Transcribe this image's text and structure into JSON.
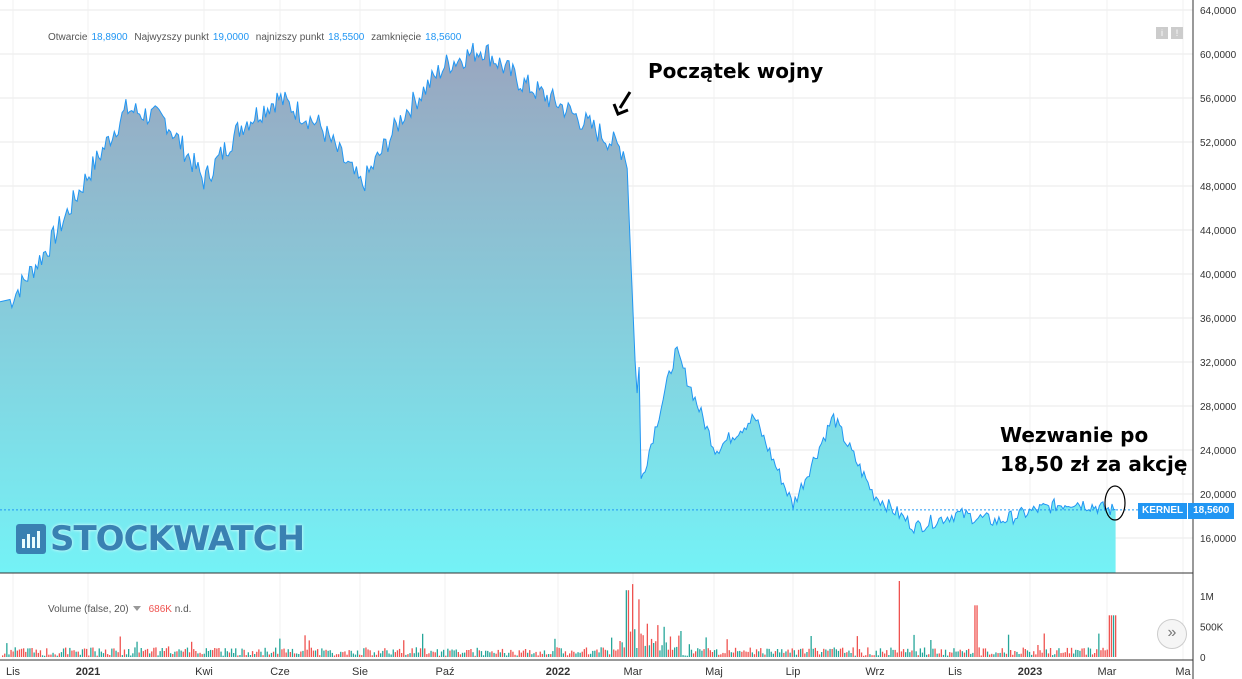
{
  "legend": {
    "open_label": "Otwarcie",
    "open_value": "18,8900",
    "high_label": "Najwyzszy punkt",
    "high_value": "19,0000",
    "low_label": "najnizszy punkt",
    "low_value": "18,5500",
    "close_label": "zamknięcie",
    "close_value": "18,5600"
  },
  "volume_legend": {
    "label": "Volume (false, 20)",
    "value": "686K",
    "extra": "n.d."
  },
  "annotations": {
    "war": "Początek wojny",
    "tender_line1": "Wezwanie po",
    "tender_line2": "18,50 zł za akcję"
  },
  "watermark": "STOCKWATCH",
  "ticker": {
    "name": "KERNEL",
    "value": "18,5600"
  },
  "icons": {
    "top_buttons": [
      "info-icon",
      "alert-icon"
    ],
    "scroll": "double-chevron-right-icon"
  },
  "colors": {
    "line": "#2196f3",
    "fill_top": "#9aa5bf",
    "fill_bottom": "#74f2f6",
    "vol_up": "#26a69a",
    "vol_down": "#ef5350"
  },
  "chart_data": {
    "type": "area",
    "series": [
      {
        "x": [
          "2020-11",
          "2020-12",
          "2021-01",
          "2021-02",
          "2021-03",
          "2021-04",
          "2021-05",
          "2021-06",
          "2021-07",
          "2021-08",
          "2021-09",
          "2021-10",
          "2021-11",
          "2021-12",
          "2022-01",
          "2022-02",
          "2022-02-24",
          "2022-03",
          "2022-04",
          "2022-05",
          "2022-06",
          "2022-07",
          "2022-08",
          "2022-09",
          "2022-10",
          "2022-11",
          "2022-12",
          "2023-01",
          "2023-02",
          "2023-03"
        ],
        "values": [
          37.5,
          42.5,
          49.0,
          55.0,
          54.0,
          48.5,
          53.5,
          56.0,
          53.5,
          48.0,
          54.5,
          59.0,
          60.5,
          57.5,
          55.5,
          53.0,
          51.0,
          19.5,
          33.0,
          24.0,
          27.0,
          19.0,
          27.0,
          20.0,
          17.0,
          18.2,
          17.5,
          18.6,
          19.3,
          18.56
        ]
      }
    ],
    "x_tick_labels": [
      "Lis",
      "2021",
      "Kwi",
      "Cze",
      "Sie",
      "Paź",
      "2022",
      "Mar",
      "Maj",
      "Lip",
      "Wrz",
      "Lis",
      "2023",
      "Mar",
      "Ma"
    ],
    "y_tick_labels": [
      "16,0000",
      "20,0000",
      "24,0000",
      "28,0000",
      "32,0000",
      "36,0000",
      "40,0000",
      "44,0000",
      "48,0000",
      "52,0000",
      "56,0000",
      "60,0000",
      "64,0000"
    ],
    "ylim": [
      14.6,
      64.8
    ],
    "last_price": 18.56,
    "volume": {
      "ylim_label_ticks": [
        "0",
        "500K",
        "1M"
      ],
      "peaks": [
        {
          "date": "2022-02-24",
          "value": 1100000
        },
        {
          "date": "2022-02-28",
          "value": 1200000
        },
        {
          "date": "2022-03-03",
          "value": 950000
        },
        {
          "date": "2022-09-20",
          "value": 1250000
        },
        {
          "date": "2022-11-15",
          "value": 850000
        },
        {
          "date": "2023-03-01",
          "value": 750000
        }
      ],
      "last": 686000
    },
    "grid": true
  }
}
